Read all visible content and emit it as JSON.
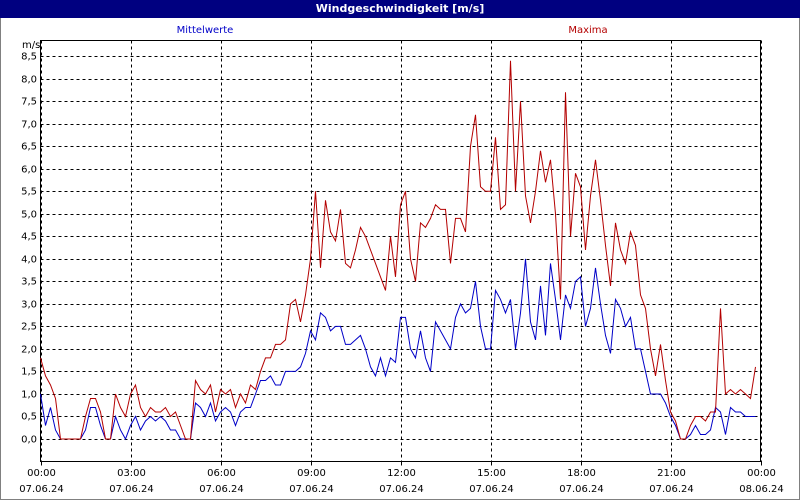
{
  "chart_data": {
    "type": "line",
    "title": "Windgeschwindigkeit [m/s]",
    "y_label": "m/s",
    "x": [
      0,
      10,
      20,
      30,
      40,
      50,
      60,
      70,
      80,
      90,
      100,
      110,
      120,
      130,
      140,
      150,
      160,
      170,
      180,
      190,
      200,
      210,
      220,
      230,
      240,
      250,
      260,
      270,
      280,
      290,
      300,
      310,
      320,
      330,
      340,
      350,
      360,
      370,
      380,
      390,
      400,
      410,
      420,
      430,
      440,
      450,
      460,
      470,
      480,
      490,
      500,
      510,
      520,
      530,
      540,
      550,
      560,
      570,
      580,
      590,
      600,
      610,
      620,
      630,
      640,
      650,
      660,
      670,
      680,
      690,
      700,
      710,
      720,
      730,
      740,
      750,
      760,
      770,
      780,
      790,
      800,
      810,
      820,
      830,
      840,
      850,
      860,
      870,
      880,
      890,
      900,
      910,
      920,
      930,
      940,
      950,
      960,
      970,
      980,
      990,
      1000,
      1010,
      1020,
      1030,
      1040,
      1050,
      1060,
      1070,
      1080,
      1090,
      1100,
      1110,
      1120,
      1130,
      1140,
      1150,
      1160,
      1170,
      1180,
      1190,
      1200,
      1210,
      1220,
      1230,
      1240,
      1250,
      1260,
      1270,
      1280,
      1290,
      1300,
      1310,
      1320,
      1330,
      1340,
      1350,
      1360,
      1370,
      1380,
      1390,
      1400,
      1410,
      1420,
      1430
    ],
    "series": [
      {
        "name": "Mittelwerte",
        "color": "#0000c8",
        "values": [
          1.0,
          0.3,
          0.7,
          0.2,
          0,
          0,
          0,
          0,
          0,
          0.2,
          0.7,
          0.7,
          0.3,
          0,
          0,
          0.5,
          0.2,
          0,
          0.3,
          0.5,
          0.2,
          0.4,
          0.5,
          0.4,
          0.5,
          0.4,
          0.2,
          0.2,
          0,
          0,
          0,
          0.8,
          0.7,
          0.5,
          0.8,
          0.4,
          0.6,
          0.7,
          0.6,
          0.3,
          0.6,
          0.7,
          0.7,
          1.0,
          1.3,
          1.3,
          1.4,
          1.2,
          1.2,
          1.5,
          1.5,
          1.5,
          1.6,
          1.9,
          2.4,
          2.2,
          2.8,
          2.7,
          2.4,
          2.5,
          2.5,
          2.1,
          2.1,
          2.2,
          2.3,
          2.0,
          1.6,
          1.4,
          1.8,
          1.4,
          1.8,
          1.7,
          2.7,
          2.7,
          2.0,
          1.8,
          2.4,
          1.8,
          1.5,
          2.6,
          2.4,
          2.2,
          2.0,
          2.7,
          3.0,
          2.8,
          2.9,
          3.5,
          2.5,
          2.0,
          2.0,
          3.3,
          3.1,
          2.8,
          3.1,
          2.0,
          2.8,
          4.0,
          2.6,
          2.2,
          3.4,
          2.3,
          3.9,
          3.1,
          2.2,
          3.2,
          2.9,
          3.5,
          3.6,
          2.5,
          2.9,
          3.8,
          3.0,
          2.3,
          1.9,
          3.1,
          2.9,
          2.5,
          2.7,
          2.0,
          2.0,
          1.5,
          1.0,
          1.0,
          1.0,
          0.8,
          0.5,
          0.3,
          0,
          0,
          0.1,
          0.3,
          0.1,
          0.1,
          0.2,
          0.7,
          0.6,
          0.1,
          0.7,
          0.6,
          0.6,
          0.5,
          0.5,
          0.5
        ]
      },
      {
        "name": "Maxima",
        "color": "#b40000",
        "values": [
          1.8,
          1.4,
          1.2,
          0.9,
          0,
          0,
          0,
          0,
          0,
          0.5,
          0.9,
          0.9,
          0.6,
          0,
          0,
          1.0,
          0.7,
          0.5,
          1.0,
          1.2,
          0.7,
          0.5,
          0.7,
          0.6,
          0.6,
          0.7,
          0.5,
          0.6,
          0.3,
          0,
          0,
          1.3,
          1.1,
          1.0,
          1.2,
          0.6,
          1.1,
          1.0,
          1.1,
          0.7,
          1.0,
          0.8,
          1.2,
          1.1,
          1.5,
          1.8,
          1.8,
          2.1,
          2.1,
          2.2,
          3.0,
          3.1,
          2.6,
          3.2,
          4.0,
          5.5,
          3.8,
          5.3,
          4.6,
          4.4,
          5.1,
          3.9,
          3.8,
          4.2,
          4.7,
          4.5,
          4.2,
          3.9,
          3.6,
          3.3,
          4.5,
          3.6,
          5.2,
          5.5,
          4.0,
          3.5,
          4.8,
          4.7,
          4.9,
          5.2,
          5.1,
          5.1,
          3.9,
          4.9,
          4.9,
          4.6,
          6.5,
          7.2,
          5.6,
          5.5,
          5.5,
          6.7,
          5.1,
          5.2,
          8.4,
          5.5,
          7.5,
          5.4,
          4.8,
          5.5,
          6.4,
          5.7,
          6.2,
          5.0,
          3.1,
          7.7,
          4.5,
          5.9,
          5.6,
          4.2,
          5.4,
          6.2,
          5.3,
          4.3,
          3.4,
          4.8,
          4.2,
          3.9,
          4.6,
          4.3,
          3.2,
          2.9,
          2.0,
          1.4,
          2.1,
          1.3,
          0.6,
          0.4,
          0,
          0,
          0.3,
          0.5,
          0.5,
          0.4,
          0.6,
          0.6,
          2.9,
          1.0,
          1.1,
          1.0,
          1.1,
          1.0,
          0.9,
          1.6
        ]
      }
    ],
    "xlim": [
      0,
      1440
    ],
    "xticks": [
      {
        "value": 0,
        "label": "00:00"
      },
      {
        "value": 180,
        "label": "03:00"
      },
      {
        "value": 360,
        "label": "06:00"
      },
      {
        "value": 540,
        "label": "09:00"
      },
      {
        "value": 720,
        "label": "12:00"
      },
      {
        "value": 900,
        "label": "15:00"
      },
      {
        "value": 1080,
        "label": "18:00"
      },
      {
        "value": 1260,
        "label": "21:00"
      },
      {
        "value": 1440,
        "label": "00:00"
      }
    ],
    "xtick_dates": [
      "07.06.24",
      "07.06.24",
      "07.06.24",
      "07.06.24",
      "07.06.24",
      "07.06.24",
      "07.06.24",
      "07.06.24",
      "08.06.24"
    ],
    "ylim": [
      -0.5,
      8.85
    ],
    "yticks": [
      {
        "value": 0,
        "label": "0,0"
      },
      {
        "value": 0.5,
        "label": "0,5"
      },
      {
        "value": 1,
        "label": "1,0"
      },
      {
        "value": 1.5,
        "label": "1,5"
      },
      {
        "value": 2,
        "label": "2,0"
      },
      {
        "value": 2.5,
        "label": "2,5"
      },
      {
        "value": 3,
        "label": "3,0"
      },
      {
        "value": 3.5,
        "label": "3,5"
      },
      {
        "value": 4,
        "label": "4,0"
      },
      {
        "value": 4.5,
        "label": "4,5"
      },
      {
        "value": 5,
        "label": "5,0"
      },
      {
        "value": 5.5,
        "label": "5,5"
      },
      {
        "value": 6,
        "label": "6,0"
      },
      {
        "value": 6.5,
        "label": "6,5"
      },
      {
        "value": 7,
        "label": "7,0"
      },
      {
        "value": 7.5,
        "label": "7,5"
      },
      {
        "value": 8,
        "label": "8,0"
      },
      {
        "value": 8.5,
        "label": "8,5"
      }
    ],
    "grid": true
  }
}
